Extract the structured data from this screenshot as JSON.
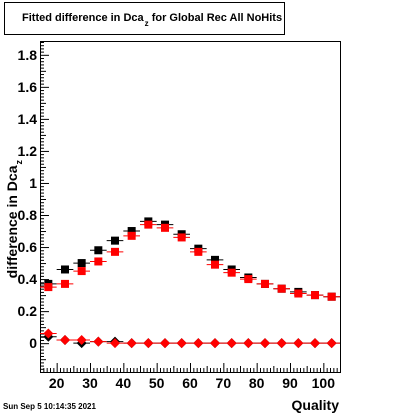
{
  "chart_data": {
    "type": "scatter",
    "title": "Fitted difference in Dca",
    "title_subscript": "z",
    "title_suffix": " for Global Rec All NoHits",
    "ylabel": "difference in Dca",
    "ylabel_subscript": "z",
    "xlabel": "Quality",
    "xlim": [
      15,
      105
    ],
    "ylim": [
      -0.18,
      1.88
    ],
    "x_ticks": [
      20,
      30,
      40,
      50,
      60,
      70,
      80,
      90,
      100
    ],
    "x_tick_labels": [
      "20",
      "30",
      "40",
      "50",
      "60",
      "70",
      "80",
      "90",
      "100"
    ],
    "y_ticks": [
      0,
      0.2,
      0.4,
      0.6,
      0.8,
      1,
      1.2,
      1.4,
      1.6,
      1.8
    ],
    "y_tick_labels": [
      "0",
      "0.2",
      "0.4",
      "0.6",
      "0.8",
      "1",
      "1.2",
      "1.4",
      "1.6",
      "1.8"
    ],
    "grid": false,
    "series": [
      {
        "marker": "square",
        "color": "#000000",
        "x": [
          17.5,
          22.5,
          27.5,
          32.5,
          37.5,
          42.5,
          47.5,
          52.5,
          57.5,
          62.5,
          67.5,
          72.5,
          77.5,
          82.5,
          87.5,
          92.5,
          97.5,
          102.5
        ],
        "y": [
          0.37,
          0.46,
          0.5,
          0.58,
          0.64,
          0.7,
          0.76,
          0.74,
          0.68,
          0.59,
          0.52,
          0.46,
          0.41,
          0.37,
          0.34,
          0.32,
          0.3,
          0.29
        ]
      },
      {
        "marker": "square",
        "color": "#ff0000",
        "x": [
          17.5,
          22.5,
          27.5,
          32.5,
          37.5,
          42.5,
          47.5,
          52.5,
          57.5,
          62.5,
          67.5,
          72.5,
          77.5,
          82.5,
          87.5,
          92.5,
          97.5,
          102.5
        ],
        "y": [
          0.35,
          0.37,
          0.45,
          0.51,
          0.57,
          0.67,
          0.74,
          0.72,
          0.66,
          0.57,
          0.49,
          0.44,
          0.4,
          0.37,
          0.34,
          0.31,
          0.3,
          0.29
        ]
      },
      {
        "marker": "diamond",
        "color": "#000000",
        "x": [
          17.5,
          22.5,
          27.5,
          32.5,
          37.5,
          42.5,
          47.5,
          52.5,
          57.5,
          62.5,
          67.5,
          72.5,
          77.5,
          82.5,
          87.5,
          92.5,
          97.5,
          102.5
        ],
        "y": [
          0.04,
          0.02,
          0.0,
          0.01,
          0.01,
          0.0,
          0.0,
          0.0,
          0.0,
          0.0,
          0.0,
          0.0,
          0.0,
          0.0,
          0.0,
          0.0,
          0.0,
          0.0
        ]
      },
      {
        "marker": "diamond",
        "color": "#ff0000",
        "x": [
          17.5,
          22.5,
          27.5,
          32.5,
          37.5,
          42.5,
          47.5,
          52.5,
          57.5,
          62.5,
          67.5,
          72.5,
          77.5,
          82.5,
          87.5,
          92.5,
          97.5,
          102.5
        ],
        "y": [
          0.06,
          0.02,
          0.02,
          0.01,
          0.0,
          0.0,
          0.0,
          0.0,
          0.0,
          0.0,
          0.0,
          0.0,
          0.0,
          0.0,
          0.0,
          0.0,
          0.0,
          0.0
        ]
      }
    ]
  },
  "timestamp": "Sun Sep  5 10:14:35 2021"
}
